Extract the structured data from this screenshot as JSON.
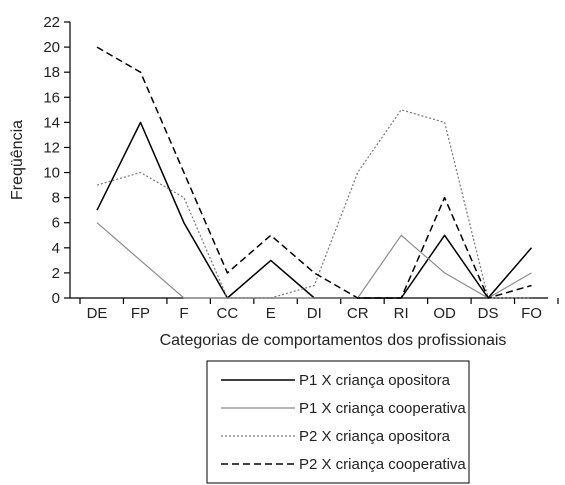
{
  "chart_data": {
    "type": "line",
    "xlabel": "Categorias de comportamentos dos profissionais",
    "ylabel": "Freqüência",
    "ylim": [
      0,
      22
    ],
    "yticks": [
      0,
      2,
      4,
      6,
      8,
      10,
      12,
      14,
      16,
      18,
      20,
      22
    ],
    "categories": [
      "DE",
      "FP",
      "F",
      "CC",
      "E",
      "DI",
      "CR",
      "RI",
      "OD",
      "DS",
      "FO"
    ],
    "grid": false,
    "legend_position": "bottom",
    "series": [
      {
        "name": "P1 X criança opositora",
        "values": [
          7,
          14,
          6,
          0,
          3,
          0,
          0,
          0,
          5,
          0,
          4
        ],
        "color": "#000000",
        "style": "solid"
      },
      {
        "name": "P1 X criança cooperativa",
        "values": [
          6,
          3,
          0,
          0,
          0,
          0,
          0,
          5,
          2,
          0,
          2
        ],
        "color": "#8c8c8c",
        "style": "solid"
      },
      {
        "name": "P2 X criança opositora",
        "values": [
          9,
          10,
          8,
          0,
          0,
          1,
          10,
          15,
          14,
          0,
          0
        ],
        "color": "#777777",
        "style": "dotted"
      },
      {
        "name": "P2 X criança cooperativa",
        "values": [
          20,
          18,
          10,
          2,
          5,
          2,
          0,
          0,
          8,
          0,
          1
        ],
        "color": "#000000",
        "style": "dashed"
      }
    ]
  }
}
